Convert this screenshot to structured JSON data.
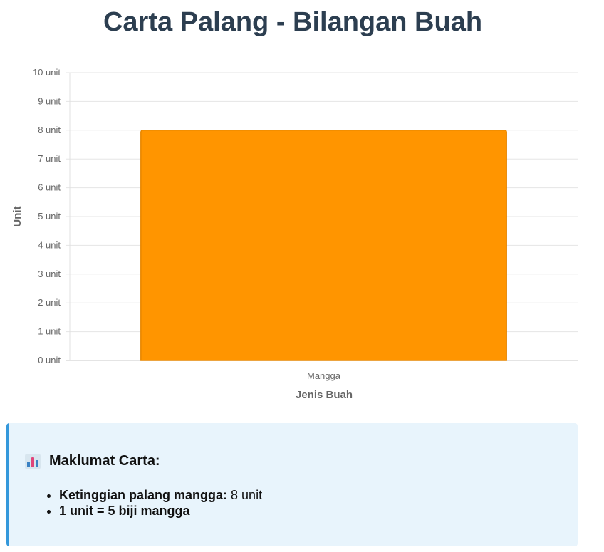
{
  "page": {
    "title": "Carta Palang - Bilangan Buah"
  },
  "chart_data": {
    "type": "bar",
    "categories": [
      "Mangga"
    ],
    "values": [
      8
    ],
    "xlabel": "Jenis Buah",
    "ylabel": "Unit",
    "ylim": [
      0,
      10
    ],
    "yticks": [
      "0 unit",
      "1 unit",
      "2 unit",
      "3 unit",
      "4 unit",
      "5 unit",
      "6 unit",
      "7 unit",
      "8 unit",
      "9 unit",
      "10 unit"
    ],
    "grid": true,
    "legend": "none",
    "bar_color": "#ff9500",
    "bar_border_color": "#e68600"
  },
  "info": {
    "icon": "bar-chart-icon",
    "heading": "Maklumat Carta:",
    "items": [
      {
        "label": "Ketinggian palang mangga:",
        "value": "8 unit"
      },
      {
        "label": "1 unit = 5 biji mangga",
        "value": ""
      }
    ]
  }
}
